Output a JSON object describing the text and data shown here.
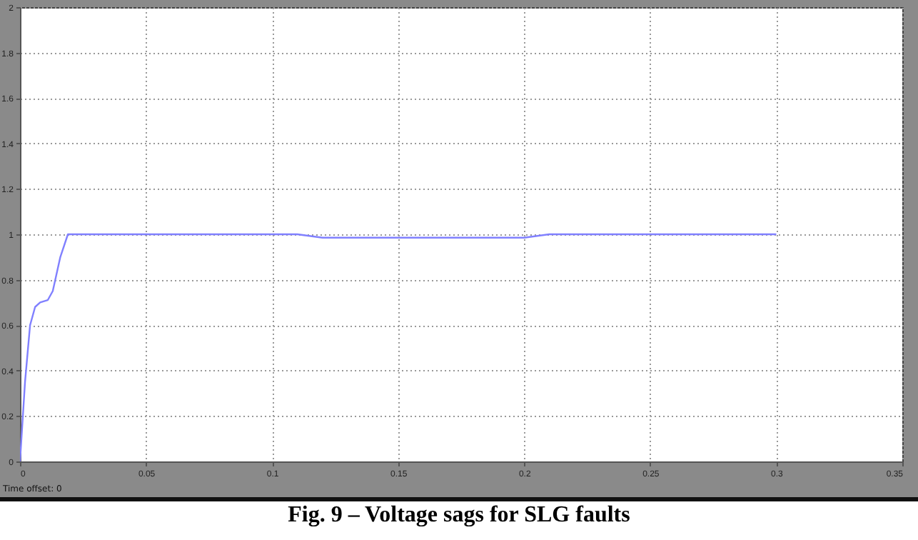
{
  "chart_data": {
    "type": "line",
    "title": "Fig. 9 – Voltage sags for SLG faults",
    "annotations": [
      "Time offset:  0"
    ],
    "x": [
      0,
      0.002,
      0.004,
      0.006,
      0.008,
      0.011,
      0.013,
      0.016,
      0.019,
      0.11,
      0.12,
      0.2,
      0.21,
      0.3
    ],
    "series": [
      {
        "color": "#8080ff",
        "values": [
          0,
          0.35,
          0.6,
          0.68,
          0.7,
          0.71,
          0.75,
          0.9,
          1,
          1,
          0.985,
          0.985,
          1,
          1
        ]
      }
    ],
    "xlim": [
      0,
      0.35
    ],
    "xticks": [
      0,
      0.05,
      0.1,
      0.15,
      0.2,
      0.25,
      0.3,
      0.35
    ],
    "ylim": [
      0,
      2
    ],
    "yticks": [
      0,
      0.2,
      0.4,
      0.6,
      0.8,
      1,
      1.2,
      1.4,
      1.6,
      1.8,
      2
    ],
    "grid": true,
    "line_style": "solid"
  }
}
